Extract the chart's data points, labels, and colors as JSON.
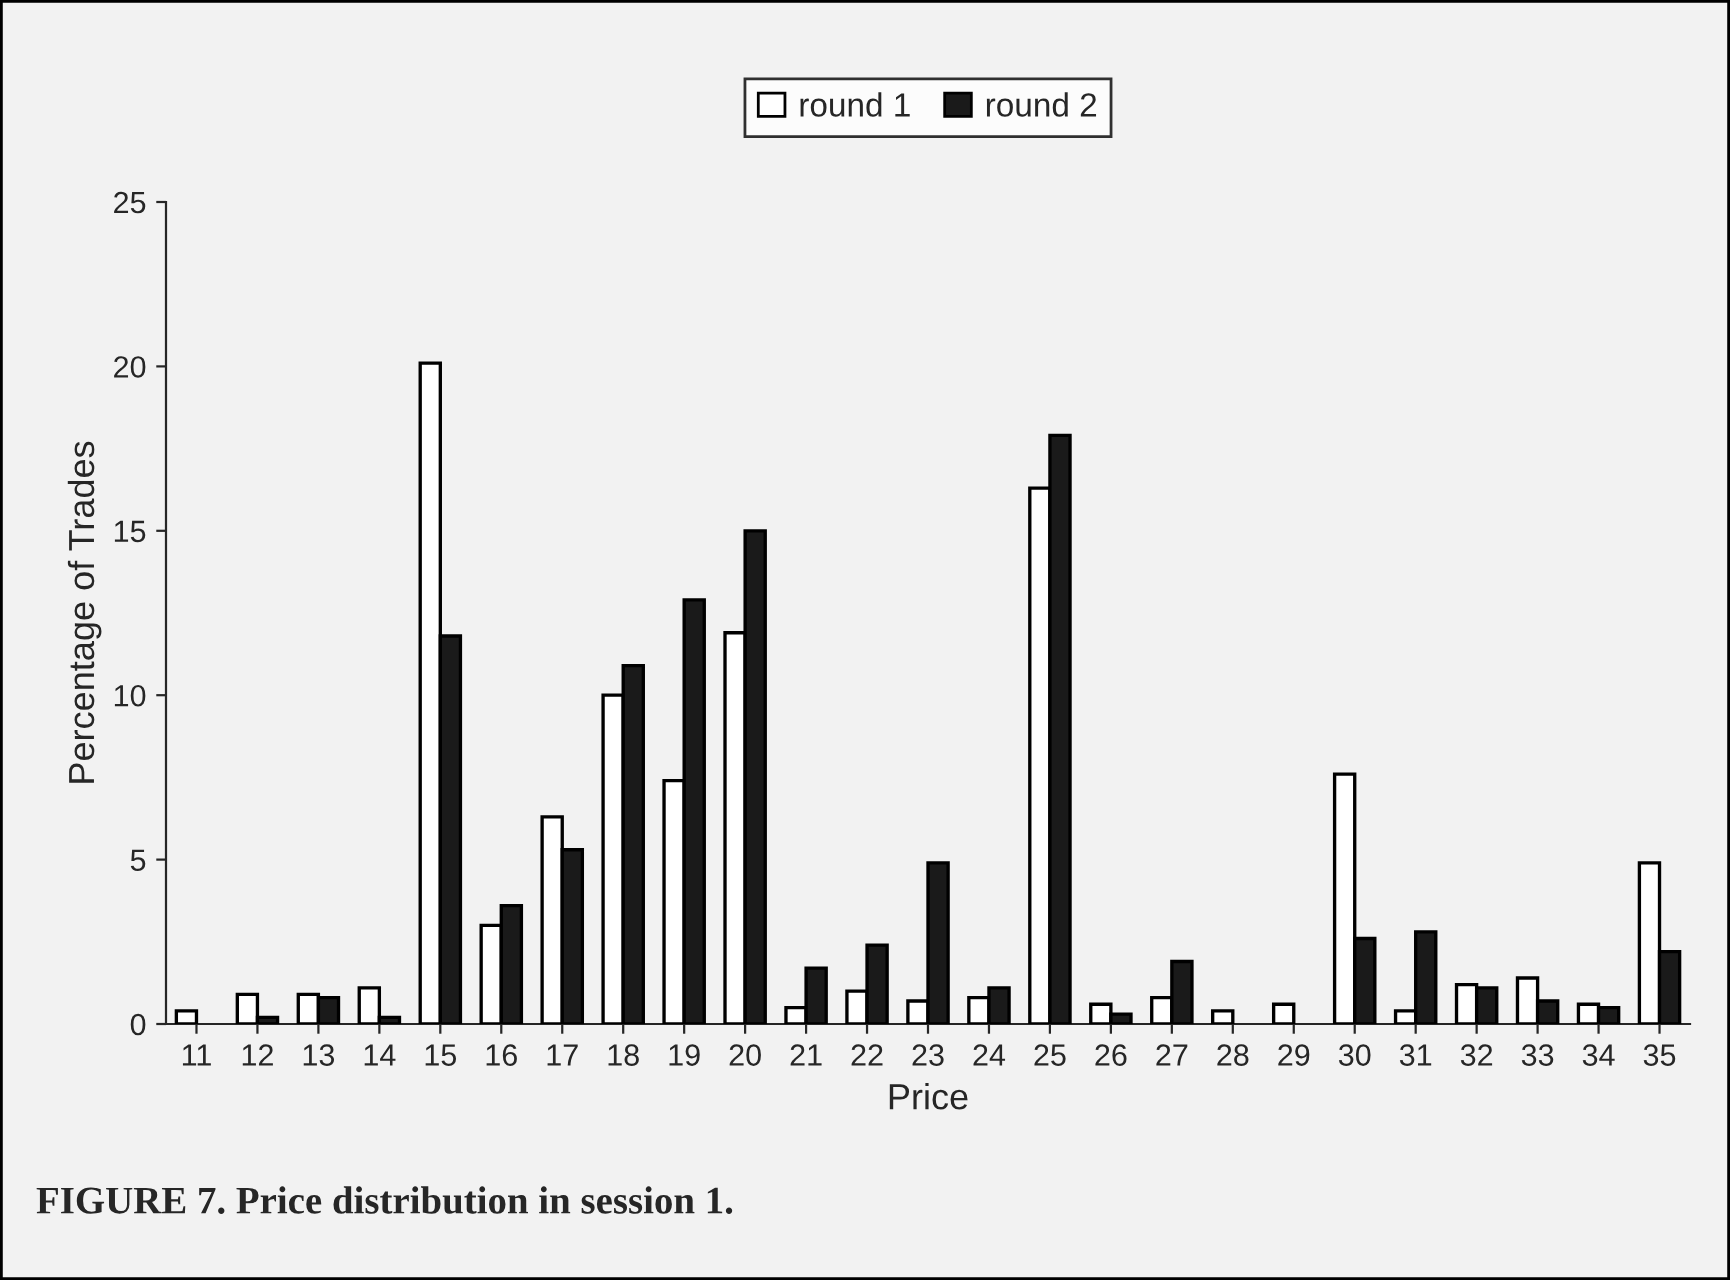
{
  "chart_data": {
    "type": "bar",
    "xlabel": "Price",
    "ylabel": "Percentage of Trades",
    "categories": [
      "11",
      "12",
      "13",
      "14",
      "15",
      "16",
      "17",
      "18",
      "19",
      "20",
      "21",
      "22",
      "23",
      "24",
      "25",
      "26",
      "27",
      "28",
      "29",
      "30",
      "31",
      "32",
      "33",
      "34",
      "35"
    ],
    "series": [
      {
        "name": "round 1",
        "color": "#ffffff",
        "values": [
          0.4,
          0.9,
          0.9,
          1.1,
          20.1,
          3.0,
          6.3,
          10.0,
          7.4,
          11.9,
          0.5,
          1.0,
          0.7,
          0.8,
          16.3,
          0.6,
          0.8,
          0.4,
          0.6,
          7.6,
          0.4,
          1.2,
          1.4,
          0.6,
          4.9
        ]
      },
      {
        "name": "round 2",
        "color": "#1a1a1a",
        "values": [
          null,
          0.2,
          0.8,
          0.2,
          11.8,
          3.6,
          5.3,
          10.9,
          12.9,
          15.0,
          1.7,
          2.4,
          4.9,
          1.1,
          17.9,
          0.3,
          1.9,
          null,
          null,
          2.6,
          2.8,
          1.1,
          0.7,
          0.5,
          2.2
        ]
      }
    ],
    "ylim": [
      0,
      25
    ],
    "yticks": [
      0,
      5,
      10,
      15,
      20,
      25
    ],
    "grid": false,
    "legend": "top",
    "annotations": [
      "FIGURE 7. Price distribution in session 1."
    ]
  }
}
